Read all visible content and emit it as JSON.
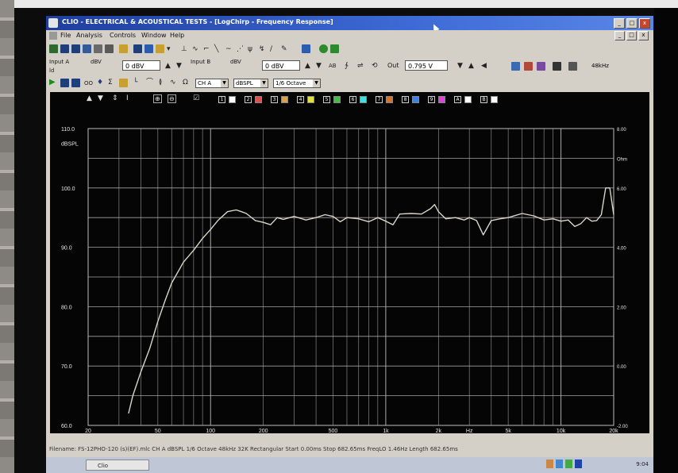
{
  "window": {
    "title": "CLIO - ELECTRICAL & ACOUSTICAL TESTS - [LogChirp - Frequency Response]"
  },
  "menu": [
    "File",
    "Analysis",
    "Controls",
    "Window",
    "Help"
  ],
  "toolbar": {
    "input_a_label": "Input A",
    "input_a_unit": "dBV",
    "input_a_value": "0 dBV",
    "input_b_label": "Input B",
    "input_b_unit": "dBV",
    "input_b_value": "0 dBV",
    "out_label": "Out",
    "out_value": "0.795 V",
    "sample_rate": "48kHz"
  },
  "analysis_toolbar": {
    "channel": "CH A",
    "unit": "dBSPL",
    "smoothing": "1/6 Octave"
  },
  "colors": {
    "trace": "#d8d6c8",
    "grid": "#bdbdbd",
    "axis_text": "#e8e8e8",
    "background": "#050505"
  },
  "chart_data": {
    "type": "line",
    "ylabel": "dBSPL",
    "y2label": "Ohm",
    "x_scale": "log",
    "xlim": [
      20,
      20000
    ],
    "ylim": [
      60,
      110
    ],
    "y2lim": [
      -2,
      8
    ],
    "x_tick_labels": [
      "20",
      "50",
      "100",
      "200",
      "500",
      "1k",
      "2k",
      "Hz",
      "5k",
      "10k",
      "20k"
    ],
    "y_tick_labels": [
      "110.0",
      "100.0",
      "90.0",
      "80.0",
      "70.0",
      "60.0"
    ],
    "y2_tick_labels": [
      "8.00",
      "6.00",
      "4.00",
      "2.00",
      "0.00",
      "-2.00"
    ],
    "grid": true,
    "series": [
      {
        "x": [
          34,
          36,
          40,
          45,
          50,
          55,
          60,
          70,
          80,
          90,
          100,
          110,
          125,
          140,
          150,
          160,
          180,
          200,
          220,
          240,
          260,
          300,
          350,
          400,
          450,
          500,
          550,
          600,
          700,
          800,
          900,
          1000,
          1100,
          1200,
          1400,
          1600,
          1800,
          1900,
          2000,
          2200,
          2500,
          2800,
          3000,
          3300,
          3600,
          4000,
          4500,
          5000,
          6000,
          7000,
          8000,
          9000,
          10000,
          11000,
          12000,
          13000,
          14000,
          15000,
          16000,
          17000,
          18000,
          19000,
          20000
        ],
        "y": [
          62.0,
          65.0,
          69.0,
          73.0,
          77.5,
          81.0,
          84.0,
          87.5,
          89.5,
          91.5,
          93.0,
          94.5,
          96.0,
          96.3,
          96.0,
          95.7,
          94.5,
          94.2,
          93.8,
          95.0,
          94.7,
          95.2,
          94.6,
          95.0,
          95.5,
          95.2,
          94.3,
          95.0,
          94.8,
          94.3,
          95.0,
          94.4,
          93.8,
          95.6,
          95.7,
          95.6,
          96.5,
          97.2,
          96.0,
          94.8,
          95.0,
          94.6,
          95.0,
          94.5,
          92.1,
          94.5,
          94.8,
          95.0,
          95.7,
          95.3,
          94.6,
          94.8,
          94.4,
          94.6,
          93.5,
          94.0,
          95.0,
          94.4,
          94.5,
          95.5,
          100.0,
          100.0,
          95.5
        ]
      }
    ]
  },
  "chart_toolbar": {
    "marker_labels": [
      "1",
      "2",
      "3",
      "4",
      "5",
      "6",
      "7",
      "8",
      "9",
      "A",
      "B"
    ]
  },
  "status": {
    "text": "Filename: FS-12PHO-120 (s)(EF).mlc   CH A  dBSPL  1/6 Octave  48kHz  32K  Rectangular  Start 0.00ms  Stop 682.65ms  FreqLO 1.46Hz  Length 682.65ms"
  },
  "taskbar": {
    "task_label": "Clio",
    "clock": "9:04"
  }
}
